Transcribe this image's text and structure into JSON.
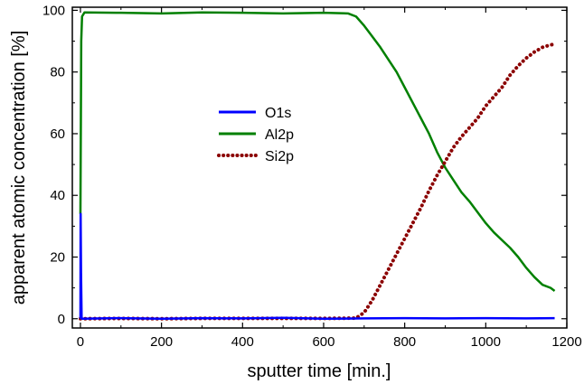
{
  "chart_data": {
    "type": "line",
    "xlabel": "sputter time [min.]",
    "ylabel": "apparent atomic concentration [%]",
    "xlim": [
      -20,
      1200
    ],
    "ylim": [
      -3,
      101
    ],
    "x_ticks": [
      "0",
      "200",
      "400",
      "600",
      "800",
      "1000",
      "1200"
    ],
    "y_ticks": [
      "0",
      "20",
      "40",
      "60",
      "80",
      "100"
    ],
    "grid": false,
    "legend_position": "center-left",
    "series": [
      {
        "name": "O1s",
        "color": "#0000ff",
        "style": "solid",
        "points": [
          [
            0,
            0
          ],
          [
            0.5,
            34
          ],
          [
            1.5,
            15
          ],
          [
            3,
            0
          ],
          [
            100,
            0.2
          ],
          [
            200,
            0
          ],
          [
            300,
            0.2
          ],
          [
            400,
            0.1
          ],
          [
            500,
            0.3
          ],
          [
            600,
            0
          ],
          [
            700,
            0.1
          ],
          [
            800,
            0.2
          ],
          [
            900,
            0.1
          ],
          [
            1000,
            0.2
          ],
          [
            1100,
            0.1
          ],
          [
            1170,
            0.2
          ]
        ]
      },
      {
        "name": "Al2p",
        "color": "#008000",
        "style": "solid",
        "points": [
          [
            0,
            34
          ],
          [
            2,
            90
          ],
          [
            4,
            98
          ],
          [
            10,
            99.3
          ],
          [
            100,
            99.2
          ],
          [
            200,
            99
          ],
          [
            300,
            99.3
          ],
          [
            400,
            99.2
          ],
          [
            500,
            99
          ],
          [
            600,
            99.2
          ],
          [
            660,
            99
          ],
          [
            680,
            98
          ],
          [
            700,
            95
          ],
          [
            720,
            91.5
          ],
          [
            740,
            88
          ],
          [
            760,
            84
          ],
          [
            780,
            80
          ],
          [
            800,
            75
          ],
          [
            820,
            70
          ],
          [
            840,
            65
          ],
          [
            860,
            60
          ],
          [
            880,
            54
          ],
          [
            900,
            49
          ],
          [
            920,
            45
          ],
          [
            940,
            41
          ],
          [
            960,
            38
          ],
          [
            980,
            34.5
          ],
          [
            1000,
            31
          ],
          [
            1020,
            28
          ],
          [
            1040,
            25.5
          ],
          [
            1060,
            23
          ],
          [
            1080,
            20
          ],
          [
            1100,
            16.5
          ],
          [
            1120,
            13.5
          ],
          [
            1140,
            11
          ],
          [
            1160,
            10
          ],
          [
            1170,
            9
          ]
        ]
      },
      {
        "name": "Si2p",
        "color": "#8b0000",
        "style": "dotted",
        "points": [
          [
            0,
            0
          ],
          [
            100,
            0.1
          ],
          [
            200,
            0
          ],
          [
            300,
            0.1
          ],
          [
            400,
            0.1
          ],
          [
            500,
            0.1
          ],
          [
            600,
            0.1
          ],
          [
            680,
            0.2
          ],
          [
            700,
            2
          ],
          [
            720,
            6
          ],
          [
            740,
            11
          ],
          [
            760,
            16
          ],
          [
            780,
            21
          ],
          [
            800,
            26
          ],
          [
            820,
            31
          ],
          [
            840,
            36
          ],
          [
            860,
            41.5
          ],
          [
            880,
            46.5
          ],
          [
            900,
            51
          ],
          [
            920,
            55.5
          ],
          [
            940,
            59
          ],
          [
            960,
            62
          ],
          [
            980,
            65
          ],
          [
            1000,
            69
          ],
          [
            1020,
            72
          ],
          [
            1040,
            75
          ],
          [
            1060,
            79
          ],
          [
            1080,
            82
          ],
          [
            1100,
            84.5
          ],
          [
            1120,
            86.5
          ],
          [
            1140,
            88
          ],
          [
            1160,
            88.8
          ],
          [
            1170,
            89
          ]
        ]
      }
    ]
  }
}
